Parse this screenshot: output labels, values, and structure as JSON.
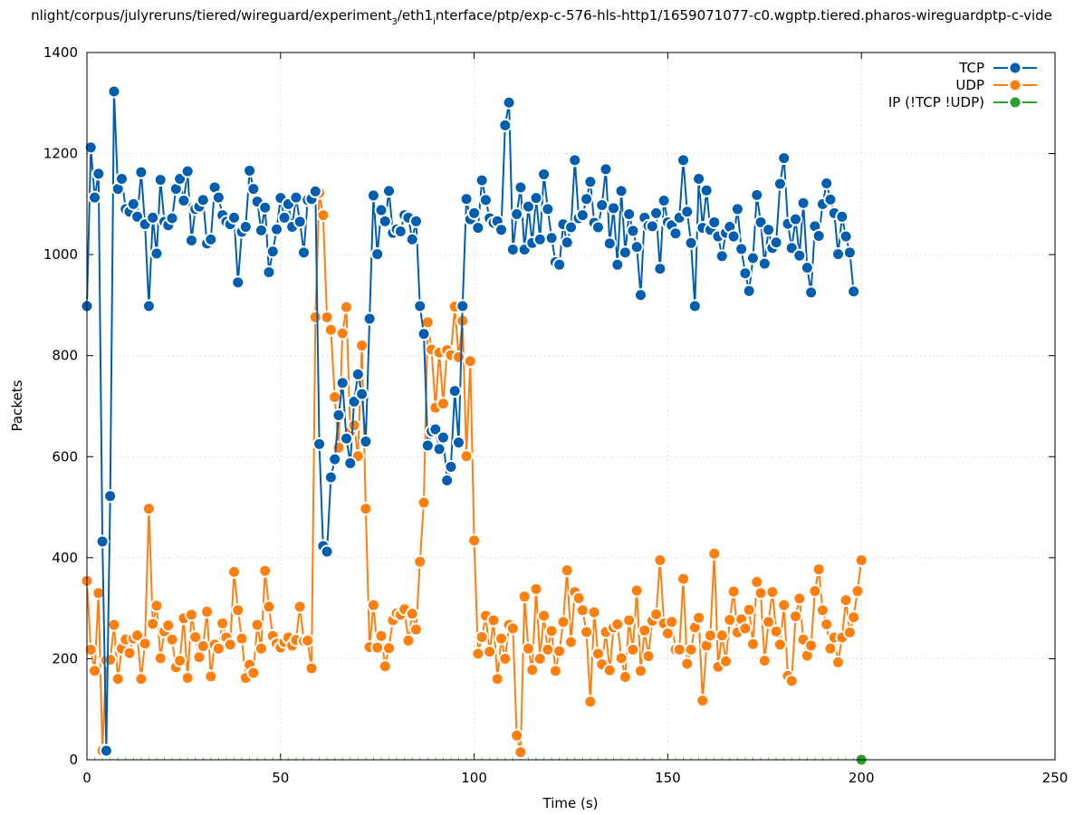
{
  "chart_data": {
    "type": "line",
    "title": "nlight/corpus/julyreruns/tiered/wireguard/experiment_3/eth1_interface/ptp/exp-c-576-hls-http1/1659071077-c0.wgptp.tiered.pharos-wireguardptp-c-vide",
    "title_parts": {
      "p1": "nlight/corpus/julyreruns/tiered/wireguard/experiment",
      "sub1": "3",
      "p2": "/eth1",
      "sub2": "i",
      "p3": "nterface/ptp/exp-c-576-hls-http1/1659071077-c0.wgptp.tiered.pharos-wireguardptp-c-vide"
    },
    "xlabel": "Time (s)",
    "ylabel": "Packets",
    "xlim": [
      0,
      250
    ],
    "ylim": [
      0,
      1400
    ],
    "xticks": [
      0,
      50,
      100,
      150,
      200,
      250
    ],
    "yticks": [
      0,
      200,
      400,
      600,
      800,
      1000,
      1200,
      1400
    ],
    "grid": true,
    "legend_position": "top-right",
    "series": [
      {
        "name": "TCP",
        "color": "#005eb0",
        "x_start": 0,
        "x_step": 1,
        "values": [
          898,
          1212,
          1113,
          1160,
          432,
          18,
          522,
          1323,
          1130,
          1150,
          1090,
          1085,
          1100,
          1075,
          1163,
          1060,
          898,
          1073,
          1002,
          1148,
          1065,
          1058,
          1072,
          1130,
          1150,
          1107,
          1165,
          1028,
          1090,
          1095,
          1108,
          1022,
          1030,
          1133,
          1113,
          1078,
          1065,
          1060,
          1073,
          945,
          1045,
          1055,
          1166,
          1130,
          1105,
          1048,
          1093,
          965,
          1006,
          1050,
          1112,
          1073,
          1100,
          1055,
          1113,
          1065,
          1004,
          1108,
          1110,
          1125,
          625,
          423,
          412,
          559,
          595,
          682,
          746,
          636,
          587,
          709,
          763,
          724,
          630,
          873,
          1117,
          1001,
          1088,
          1066,
          1126,
          1043,
          1050,
          1046,
          1078,
          1073,
          1030,
          1066,
          898,
          843,
          622,
          650,
          654,
          615,
          638,
          553,
          580,
          730,
          628,
          898,
          1110,
          1070,
          1082,
          1053,
          1147,
          1108,
          1072,
          1063,
          1066,
          1049,
          1256,
          1301,
          1010,
          1080,
          1133,
          1010,
          1095,
          1023,
          1112,
          1030,
          1159,
          1090,
          1033,
          985,
          980,
          1060,
          1024,
          1054,
          1187,
          1072,
          1078,
          1110,
          1144,
          1063,
          1054,
          1098,
          1169,
          1022,
          1092,
          980,
          1126,
          1004,
          1080,
          1047,
          1015,
          920,
          1073,
          1057,
          1056,
          1082,
          972,
          1107,
          1064,
          1058,
          1042,
          1073,
          1187,
          1085,
          1023,
          898,
          1150,
          1053,
          1127,
          1049,
          1064,
          1036,
          997,
          1043,
          1055,
          1036,
          1090,
          1011,
          963,
          928,
          993,
          1118,
          1064,
          982,
          1049,
          1013,
          1024,
          1140,
          1191,
          1061,
          1013,
          1070,
          998,
          1102,
          974,
          925,
          1056,
          1037,
          1100,
          1141,
          1109,
          1082,
          1001,
          1075,
          1036,
          1004,
          927
        ]
      },
      {
        "name": "UDP",
        "color": "#ff7f0e",
        "x_start": 0,
        "x_step": 1,
        "values": [
          354,
          218,
          176,
          330,
          18,
          197,
          198,
          267,
          160,
          220,
          238,
          211,
          240,
          246,
          160,
          230,
          497,
          269,
          305,
          201,
          254,
          266,
          238,
          183,
          196,
          280,
          162,
          287,
          243,
          203,
          225,
          293,
          165,
          228,
          220,
          270,
          242,
          228,
          372,
          296,
          240,
          162,
          188,
          172,
          267,
          220,
          374,
          303,
          245,
          230,
          222,
          233,
          242,
          226,
          237,
          303,
          235,
          236,
          181,
          876,
          1122,
          1078,
          876,
          851,
          718,
          618,
          844,
          896,
          650,
          662,
          601,
          820,
          497,
          223,
          306,
          222,
          245,
          185,
          221,
          276,
          290,
          287,
          298,
          236,
          289,
          258,
          392,
          509,
          866,
          812,
          697,
          806,
          705,
          811,
          801,
          897,
          797,
          869,
          601,
          789,
          434,
          210,
          243,
          285,
          214,
          276,
          160,
          240,
          200,
          267,
          260,
          48,
          15,
          323,
          220,
          178,
          338,
          200,
          285,
          218,
          255,
          176,
          215,
          273,
          375,
          233,
          332,
          320,
          296,
          253,
          115,
          292,
          210,
          189,
          253,
          177,
          262,
          268,
          201,
          164,
          276,
          218,
          335,
          176,
          256,
          205,
          275,
          288,
          395,
          270,
          250,
          273,
          218,
          218,
          358,
          190,
          218,
          262,
          281,
          117,
          226,
          246,
          408,
          184,
          246,
          195,
          277,
          333,
          252,
          278,
          260,
          297,
          229,
          352,
          330,
          196,
          273,
          332,
          254,
          228,
          306,
          166,
          156,
          284,
          319,
          238,
          206,
          226,
          334,
          377,
          296,
          268,
          220,
          242,
          193,
          242,
          316,
          252,
          282,
          334,
          395
        ]
      },
      {
        "name": "IP (!TCP  !UDP)",
        "color": "#2ca02c",
        "x_start": 0,
        "x_step": 1,
        "values": [
          0,
          0,
          0,
          0,
          0,
          0,
          0,
          0,
          0,
          0,
          0,
          0,
          0,
          0,
          0,
          0,
          0,
          0,
          0,
          0,
          0,
          0,
          0,
          0,
          0,
          0,
          0,
          0,
          0,
          0,
          0,
          0,
          0,
          0,
          0,
          0,
          0,
          0,
          0,
          0,
          0,
          0,
          0,
          0,
          0,
          0,
          0,
          0,
          0,
          0,
          0,
          0,
          0,
          0,
          0,
          0,
          0,
          0,
          0,
          0,
          0,
          0,
          0,
          0,
          0,
          0,
          0,
          0,
          0,
          0,
          0,
          0,
          0,
          0,
          0,
          0,
          0,
          0,
          0,
          0,
          0,
          0,
          0,
          0,
          0,
          0,
          0,
          0,
          0,
          0,
          0,
          0,
          0,
          0,
          0,
          0,
          0,
          0,
          0,
          0,
          0,
          0,
          0,
          0,
          0,
          0,
          0,
          0,
          0,
          0,
          0,
          0,
          0,
          0,
          0,
          0,
          0,
          0,
          0,
          0,
          0,
          0,
          0,
          0,
          0,
          0,
          0,
          0,
          0,
          0,
          0,
          0,
          0,
          0,
          0,
          0,
          0,
          0,
          0,
          0,
          0,
          0,
          0,
          0,
          0,
          0,
          0,
          0,
          0,
          0,
          0,
          0,
          0,
          0,
          0,
          0,
          0,
          0,
          0,
          0,
          0,
          0,
          0,
          0,
          0,
          0,
          0,
          0,
          0,
          0,
          0,
          0,
          0,
          0,
          0,
          0,
          0,
          0,
          0,
          0,
          0,
          0,
          0,
          0,
          0,
          0,
          0,
          0,
          0,
          0,
          0,
          0,
          0,
          0,
          0,
          0,
          0,
          0,
          0,
          0,
          0
        ],
        "marker_only_last": true
      }
    ]
  }
}
